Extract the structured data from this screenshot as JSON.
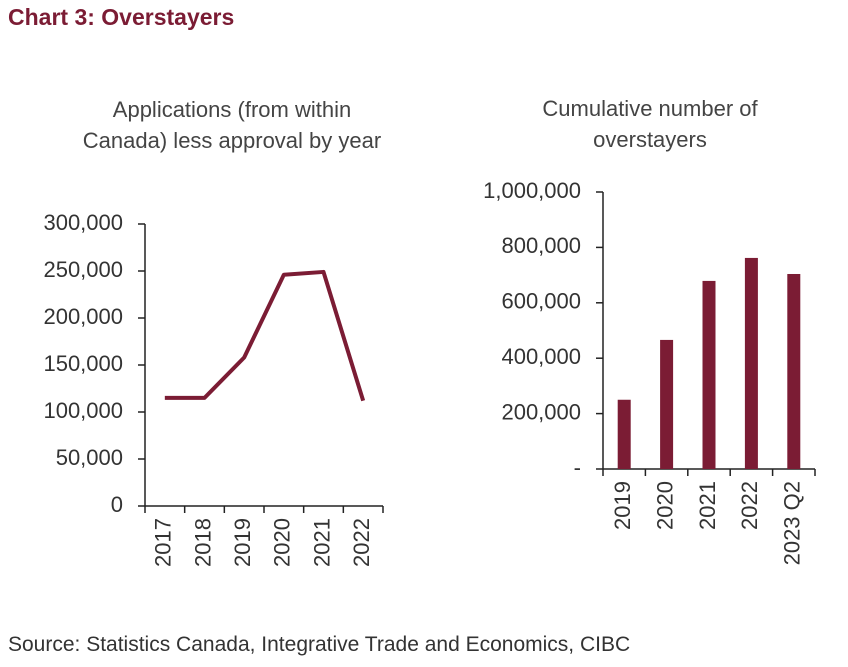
{
  "title": "Chart 3: Overstayers",
  "source": "Source: Statistics Canada, Integrative Trade and Economics, CIBC",
  "chart_data": [
    {
      "type": "line",
      "title": "Applications (from within Canada) less approval by year",
      "categories": [
        "2017",
        "2018",
        "2019",
        "2020",
        "2021",
        "2022"
      ],
      "values": [
        115000,
        115000,
        158000,
        246000,
        249000,
        112000
      ],
      "color": "#7b1c34",
      "ylim": [
        0,
        300000
      ],
      "yticks": [
        0,
        {
          "value": 50000,
          "label": "50,000"
        },
        {
          "value": 100000,
          "label": "100,000"
        },
        {
          "value": 150000,
          "label": "150,000"
        },
        {
          "value": 200000,
          "label": "200,000"
        },
        {
          "value": 250000,
          "label": "250,000"
        },
        {
          "value": 300000,
          "label": "300,000"
        }
      ]
    },
    {
      "type": "bar",
      "title": "Cumulative number of overstayers",
      "categories": [
        "2019",
        "2020",
        "2021",
        "2022",
        "2023 Q2"
      ],
      "values": [
        250000,
        466000,
        679000,
        762000,
        704000
      ],
      "color": "#7b1c34",
      "ylim": [
        0,
        1000000
      ],
      "yticks": [
        {
          "value": 0,
          "label": "-"
        },
        {
          "value": 200000,
          "label": "200,000"
        },
        {
          "value": 400000,
          "label": "400,000"
        },
        {
          "value": 600000,
          "label": "600,000"
        },
        {
          "value": 800000,
          "label": "800,000"
        },
        {
          "value": 1000000,
          "label": "1,000,000"
        }
      ]
    }
  ]
}
